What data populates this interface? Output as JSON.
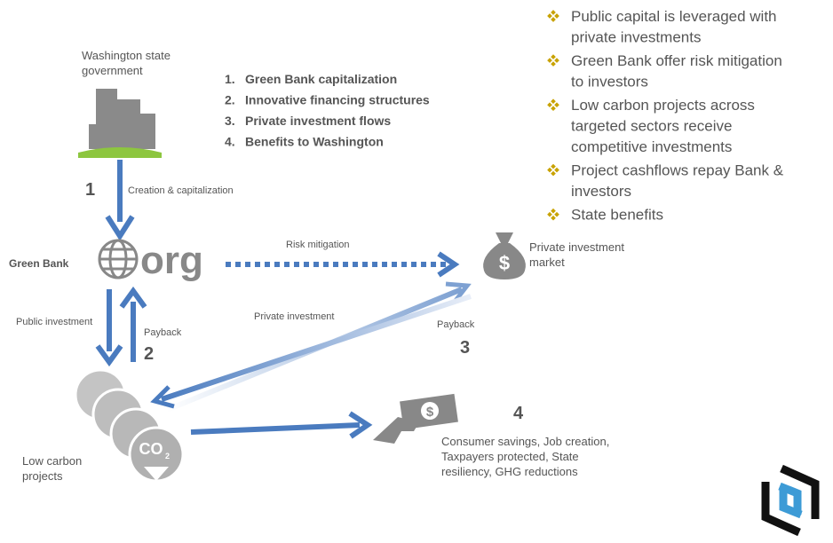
{
  "bullets": [
    {
      "lines": [
        "Public capital is leveraged with",
        "private investments"
      ]
    },
    {
      "lines": [
        "Green Bank offer risk mitigation",
        "to investors"
      ]
    },
    {
      "lines": [
        "Low carbon projects across",
        "targeted sectors receive",
        "competitive investments"
      ]
    },
    {
      "lines": [
        "Project cashflows repay Bank &",
        "investors"
      ]
    },
    {
      "lines": [
        "State benefits"
      ]
    }
  ],
  "steps": [
    {
      "number": "1.",
      "text": "Green Bank capitalization"
    },
    {
      "number": "2.",
      "text": "Innovative financing structures"
    },
    {
      "number": "3.",
      "text": "Private investment flows"
    },
    {
      "number": "4.",
      "text": "Benefits to Washington"
    }
  ],
  "nodes": {
    "government": {
      "lines": [
        "Washington state",
        "government"
      ]
    },
    "green_bank": {
      "label": "Green Bank",
      "logo_text": "org"
    },
    "market": {
      "lines": [
        "Private investment",
        "market"
      ]
    },
    "projects": {
      "lines": [
        "Low carbon",
        "projects"
      ],
      "icon_text": "CO",
      "icon_sub": "2"
    },
    "benefits": {
      "number": "4",
      "lines": [
        "Consumer savings, Job creation,",
        "Taxpayers protected, State",
        "resiliency, GHG reductions"
      ]
    }
  },
  "flows": {
    "creation": {
      "number": "1",
      "label": "Creation & capitalization"
    },
    "risk": {
      "label": "Risk mitigation"
    },
    "public": {
      "label": "Public investment"
    },
    "payback_bank": {
      "number": "2",
      "label": "Payback"
    },
    "private": {
      "label": "Private investment"
    },
    "payback_market": {
      "number": "3",
      "label": "Payback"
    }
  }
}
